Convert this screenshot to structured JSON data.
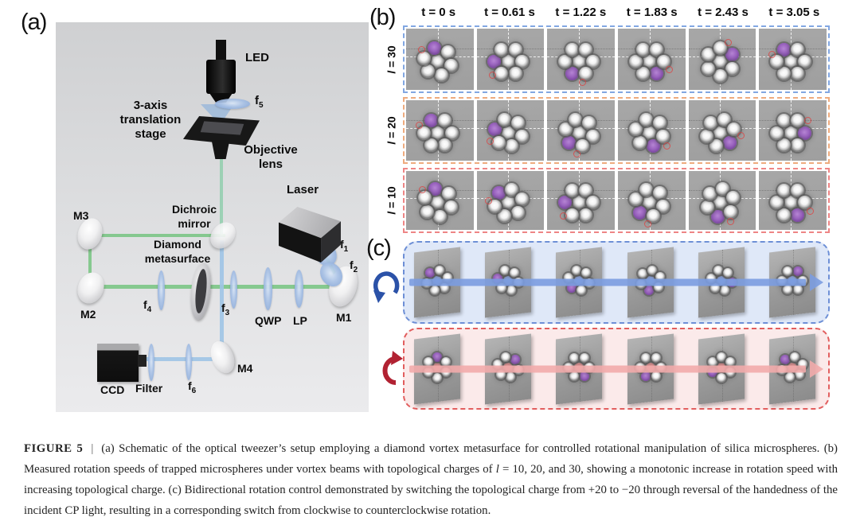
{
  "panel_a": {
    "label": "(a)",
    "labels": {
      "led": "LED",
      "f5": {
        "base": "f",
        "sub": "5"
      },
      "stage_lines": [
        "3-axis",
        "translation",
        "stage"
      ],
      "objective_lines": [
        "Objective",
        "lens"
      ],
      "laser": "Laser",
      "dichroic_lines": [
        "Dichroic",
        "mirror"
      ],
      "m3": "M3",
      "diamond_lines": [
        "Diamond",
        "metasurface"
      ],
      "m2": "M2",
      "f4": {
        "base": "f",
        "sub": "4"
      },
      "f3": {
        "base": "f",
        "sub": "3"
      },
      "qwp": "QWP",
      "lp": "LP",
      "m1": "M1",
      "f1": {
        "base": "f",
        "sub": "1"
      },
      "f2": {
        "base": "f",
        "sub": "2"
      },
      "m4": "M4",
      "f6": {
        "base": "f",
        "sub": "6"
      },
      "filter": "Filter",
      "ccd": "CCD"
    }
  },
  "panel_b": {
    "label": "(b)",
    "time_labels": [
      "t = 0 s",
      "t = 0.61 s",
      "t = 1.22 s",
      "t = 1.83 s",
      "t = 2.43 s",
      "t = 3.05 s"
    ],
    "rows": [
      {
        "charge_var": "l",
        "charge_value": " = 30",
        "border": "#82a7e2",
        "purple_angles": [
          345,
          270,
          210,
          150,
          60,
          330
        ]
      },
      {
        "charge_var": "l",
        "charge_value": " = 20",
        "border": "#eeab7e",
        "purple_angles": [
          330,
          285,
          225,
          165,
          135,
          90
        ]
      },
      {
        "charge_var": "l",
        "charge_value": " = 10",
        "border": "#ee8585",
        "purple_angles": [
          350,
          315,
          270,
          225,
          190,
          150
        ]
      }
    ],
    "colors": {
      "tile_bg": "#a7a7a7",
      "purple": "#8d55b4"
    }
  },
  "panel_c": {
    "label": "(c)",
    "rows": [
      {
        "name": "ccw",
        "direction": "counterclockwise",
        "fill": "#dfe8f8",
        "border": "#6d8fd6",
        "arrow": "#7b9ce0",
        "icon_color": "#2b52a8",
        "tint": "#8fa9e6",
        "purple_angles": [
          315,
          280,
          225,
          190,
          100,
          30
        ]
      },
      {
        "name": "cw",
        "direction": "clockwise",
        "fill": "#fbeaea",
        "border": "#e25e5e",
        "arrow": "#f2abab",
        "icon_color": "#b12232",
        "tint": "#e09090",
        "purple_angles": [
          0,
          45,
          150,
          210,
          240,
          315
        ]
      }
    ]
  },
  "caption": {
    "parts": [
      {
        "text": "FIGURE 5",
        "style": "bold"
      },
      {
        "text": "|",
        "style": "sep"
      },
      {
        "text": "(a) Schematic of the optical tweezer’s setup employing a diamond vortex metasurface for controlled rotational manipulation of silica microspheres. (b) Measured rotation speeds of trapped microspheres under vortex beams with topological charges of ",
        "style": "normal"
      },
      {
        "text": "l",
        "style": "italic"
      },
      {
        "text": " = 10, 20, and 30, showing a monotonic increase in rotation speed with increasing topological charge. (c) Bidirectional rotation control demonstrated by switching the topological charge from +20 to −20 through reversal of the handedness of the incident CP light, resulting in a corresponding switch from clockwise to counterclockwise rotation.",
        "style": "normal"
      }
    ]
  }
}
